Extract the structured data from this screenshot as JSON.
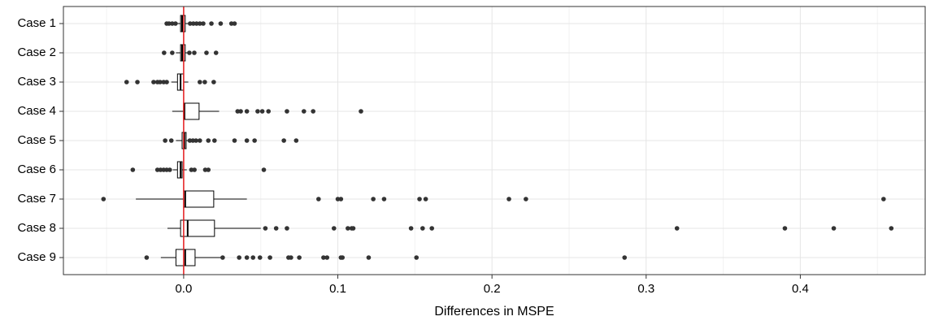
{
  "chart_data": {
    "type": "boxplot",
    "orientation": "horizontal",
    "x_label": "Differences in MSPE",
    "categories": [
      "Case 1",
      "Case 2",
      "Case 3",
      "Case 4",
      "Case 5",
      "Case 6",
      "Case 7",
      "Case 8",
      "Case 9"
    ],
    "boxes": [
      {
        "whislo": -0.004,
        "q1": -0.002,
        "med": -0.001,
        "q3": 0.001,
        "whishi": 0.003,
        "fliers": [
          -0.011,
          -0.0095,
          -0.0074,
          -0.0053,
          0.0042,
          0.0063,
          0.0084,
          0.0105,
          0.0127,
          0.018,
          0.024,
          0.031,
          0.033
        ]
      },
      {
        "whislo": -0.005,
        "q1": -0.002,
        "med": -0.001,
        "q3": 0.001,
        "whishi": 0.003,
        "fliers": [
          -0.0127,
          -0.0074,
          0.0037,
          0.0069,
          0.0148,
          0.021
        ]
      },
      {
        "whislo": -0.008,
        "q1": -0.004,
        "med": -0.002,
        "q3": 0.0,
        "whishi": 0.003,
        "fliers": [
          -0.037,
          -0.03,
          -0.0195,
          -0.017,
          -0.0153,
          -0.013,
          -0.011,
          0.0105,
          0.0137,
          0.0195
        ]
      },
      {
        "whislo": -0.0074,
        "q1": 0.0,
        "med": 0.0005,
        "q3": 0.01,
        "whishi": 0.023,
        "fliers": [
          0.035,
          0.037,
          0.041,
          0.048,
          0.051,
          0.055,
          0.067,
          0.078,
          0.084,
          0.115
        ]
      },
      {
        "whislo": -0.005,
        "q1": -0.001,
        "med": 0.0005,
        "q3": 0.0016,
        "whishi": 0.003,
        "fliers": [
          -0.012,
          -0.008,
          0.004,
          0.006,
          0.008,
          0.0105,
          0.016,
          0.02,
          0.033,
          0.041,
          0.046,
          0.065,
          0.073
        ]
      },
      {
        "whislo": -0.007,
        "q1": -0.004,
        "med": -0.002,
        "q3": -0.001,
        "whishi": 0.002,
        "fliers": [
          -0.033,
          -0.017,
          -0.015,
          -0.013,
          -0.011,
          -0.009,
          0.005,
          0.007,
          0.014,
          0.016,
          0.052
        ]
      },
      {
        "whislo": -0.031,
        "q1": 0.0,
        "med": 0.001,
        "q3": 0.0195,
        "whishi": 0.041,
        "fliers": [
          -0.052,
          0.0875,
          0.1,
          0.102,
          0.123,
          0.13,
          0.153,
          0.157,
          0.211,
          0.222,
          0.454
        ]
      },
      {
        "whislo": -0.0105,
        "q1": -0.002,
        "med": 0.0026,
        "q3": 0.02,
        "whishi": 0.05,
        "fliers": [
          0.053,
          0.06,
          0.067,
          0.0975,
          0.1065,
          0.109,
          0.11,
          0.1475,
          0.155,
          0.161,
          0.32,
          0.39,
          0.4217,
          0.459
        ]
      },
      {
        "whislo": -0.0148,
        "q1": -0.005,
        "med": 0.001,
        "q3": 0.0074,
        "whishi": 0.025,
        "fliers": [
          -0.024,
          0.0253,
          0.036,
          0.041,
          0.045,
          0.0495,
          0.056,
          0.068,
          0.0696,
          0.075,
          0.0907,
          0.093,
          0.102,
          0.103,
          0.12,
          0.151,
          0.286
        ]
      }
    ],
    "xlim": [
      -0.078,
      0.481
    ],
    "xticks": [
      {
        "value": 0,
        "label": "0.0"
      },
      0.1,
      0.2,
      0.3,
      0.4
    ],
    "grid": true,
    "ref_line": 0,
    "ref_color": "#e41a1c",
    "box_fill": "#ffffff",
    "box_color": "#000000",
    "flier_color": "#333333"
  }
}
